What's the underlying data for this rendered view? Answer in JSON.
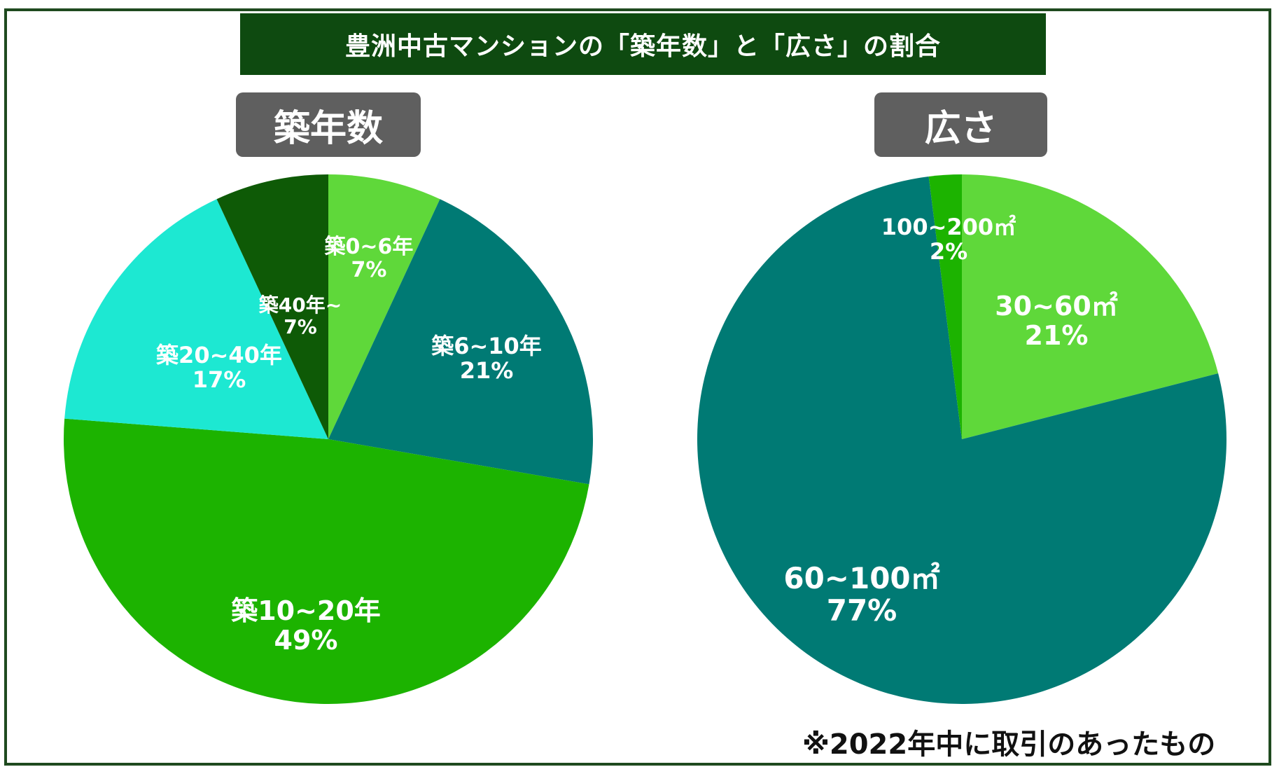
{
  "title": "豊洲中古マンションの「築年数」と「広さ」の割合",
  "footnote": "※2022年中に取引のあったもの",
  "chart_data": [
    {
      "type": "pie",
      "title": "築年数",
      "slices": [
        {
          "label": "築0~6年",
          "value": 7,
          "display": "7%",
          "color": "#5fd83a"
        },
        {
          "label": "築6~10年",
          "value": 21,
          "display": "21%",
          "color": "#007a74"
        },
        {
          "label": "築10~20年",
          "value": 49,
          "display": "49%",
          "color": "#1cb300"
        },
        {
          "label": "築20~40年",
          "value": 17,
          "display": "17%",
          "color": "#1de8d2"
        },
        {
          "label": "築40年~",
          "value": 7,
          "display": "7%",
          "color": "#0e5a06"
        }
      ],
      "start": "12 o'clock",
      "direction": "clockwise"
    },
    {
      "type": "pie",
      "title": "広さ",
      "slices": [
        {
          "label": "30~60㎡",
          "value": 21,
          "display": "21%",
          "color": "#5fd83a"
        },
        {
          "label": "60~100㎡",
          "value": 77,
          "display": "77%",
          "color": "#007a74"
        },
        {
          "label": "100~200㎡",
          "value": 2,
          "display": "2%",
          "color": "#1cb300"
        }
      ],
      "start": "12 o'clock",
      "direction": "clockwise"
    }
  ]
}
